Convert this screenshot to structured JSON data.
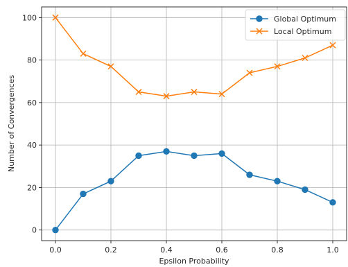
{
  "chart_data": {
    "type": "line",
    "title": "",
    "xlabel": "Epsilon Probability",
    "ylabel": "Number of Convergences",
    "x": [
      0.0,
      0.1,
      0.2,
      0.3,
      0.4,
      0.5,
      0.6,
      0.7,
      0.8,
      0.9,
      1.0
    ],
    "xlim": [
      -0.05,
      1.05
    ],
    "ylim": [
      -5,
      105
    ],
    "xticks": [
      0.0,
      0.2,
      0.4,
      0.6,
      0.8,
      1.0
    ],
    "xtick_labels": [
      "0.0",
      "0.2",
      "0.4",
      "0.6",
      "0.8",
      "1.0"
    ],
    "yticks": [
      0,
      20,
      40,
      60,
      80,
      100
    ],
    "ytick_labels": [
      "0",
      "20",
      "40",
      "60",
      "80",
      "100"
    ],
    "grid": true,
    "legend_position": "top-right",
    "series": [
      {
        "name": "Global Optimum",
        "color": "#1f77b4",
        "marker": "circle",
        "values": [
          0,
          17,
          23,
          35,
          37,
          35,
          36,
          26,
          23,
          19,
          13
        ]
      },
      {
        "name": "Local Optimum",
        "color": "#ff7f0e",
        "marker": "x",
        "values": [
          100,
          83,
          77,
          65,
          63,
          65,
          64,
          74,
          77,
          81,
          87
        ]
      }
    ]
  }
}
